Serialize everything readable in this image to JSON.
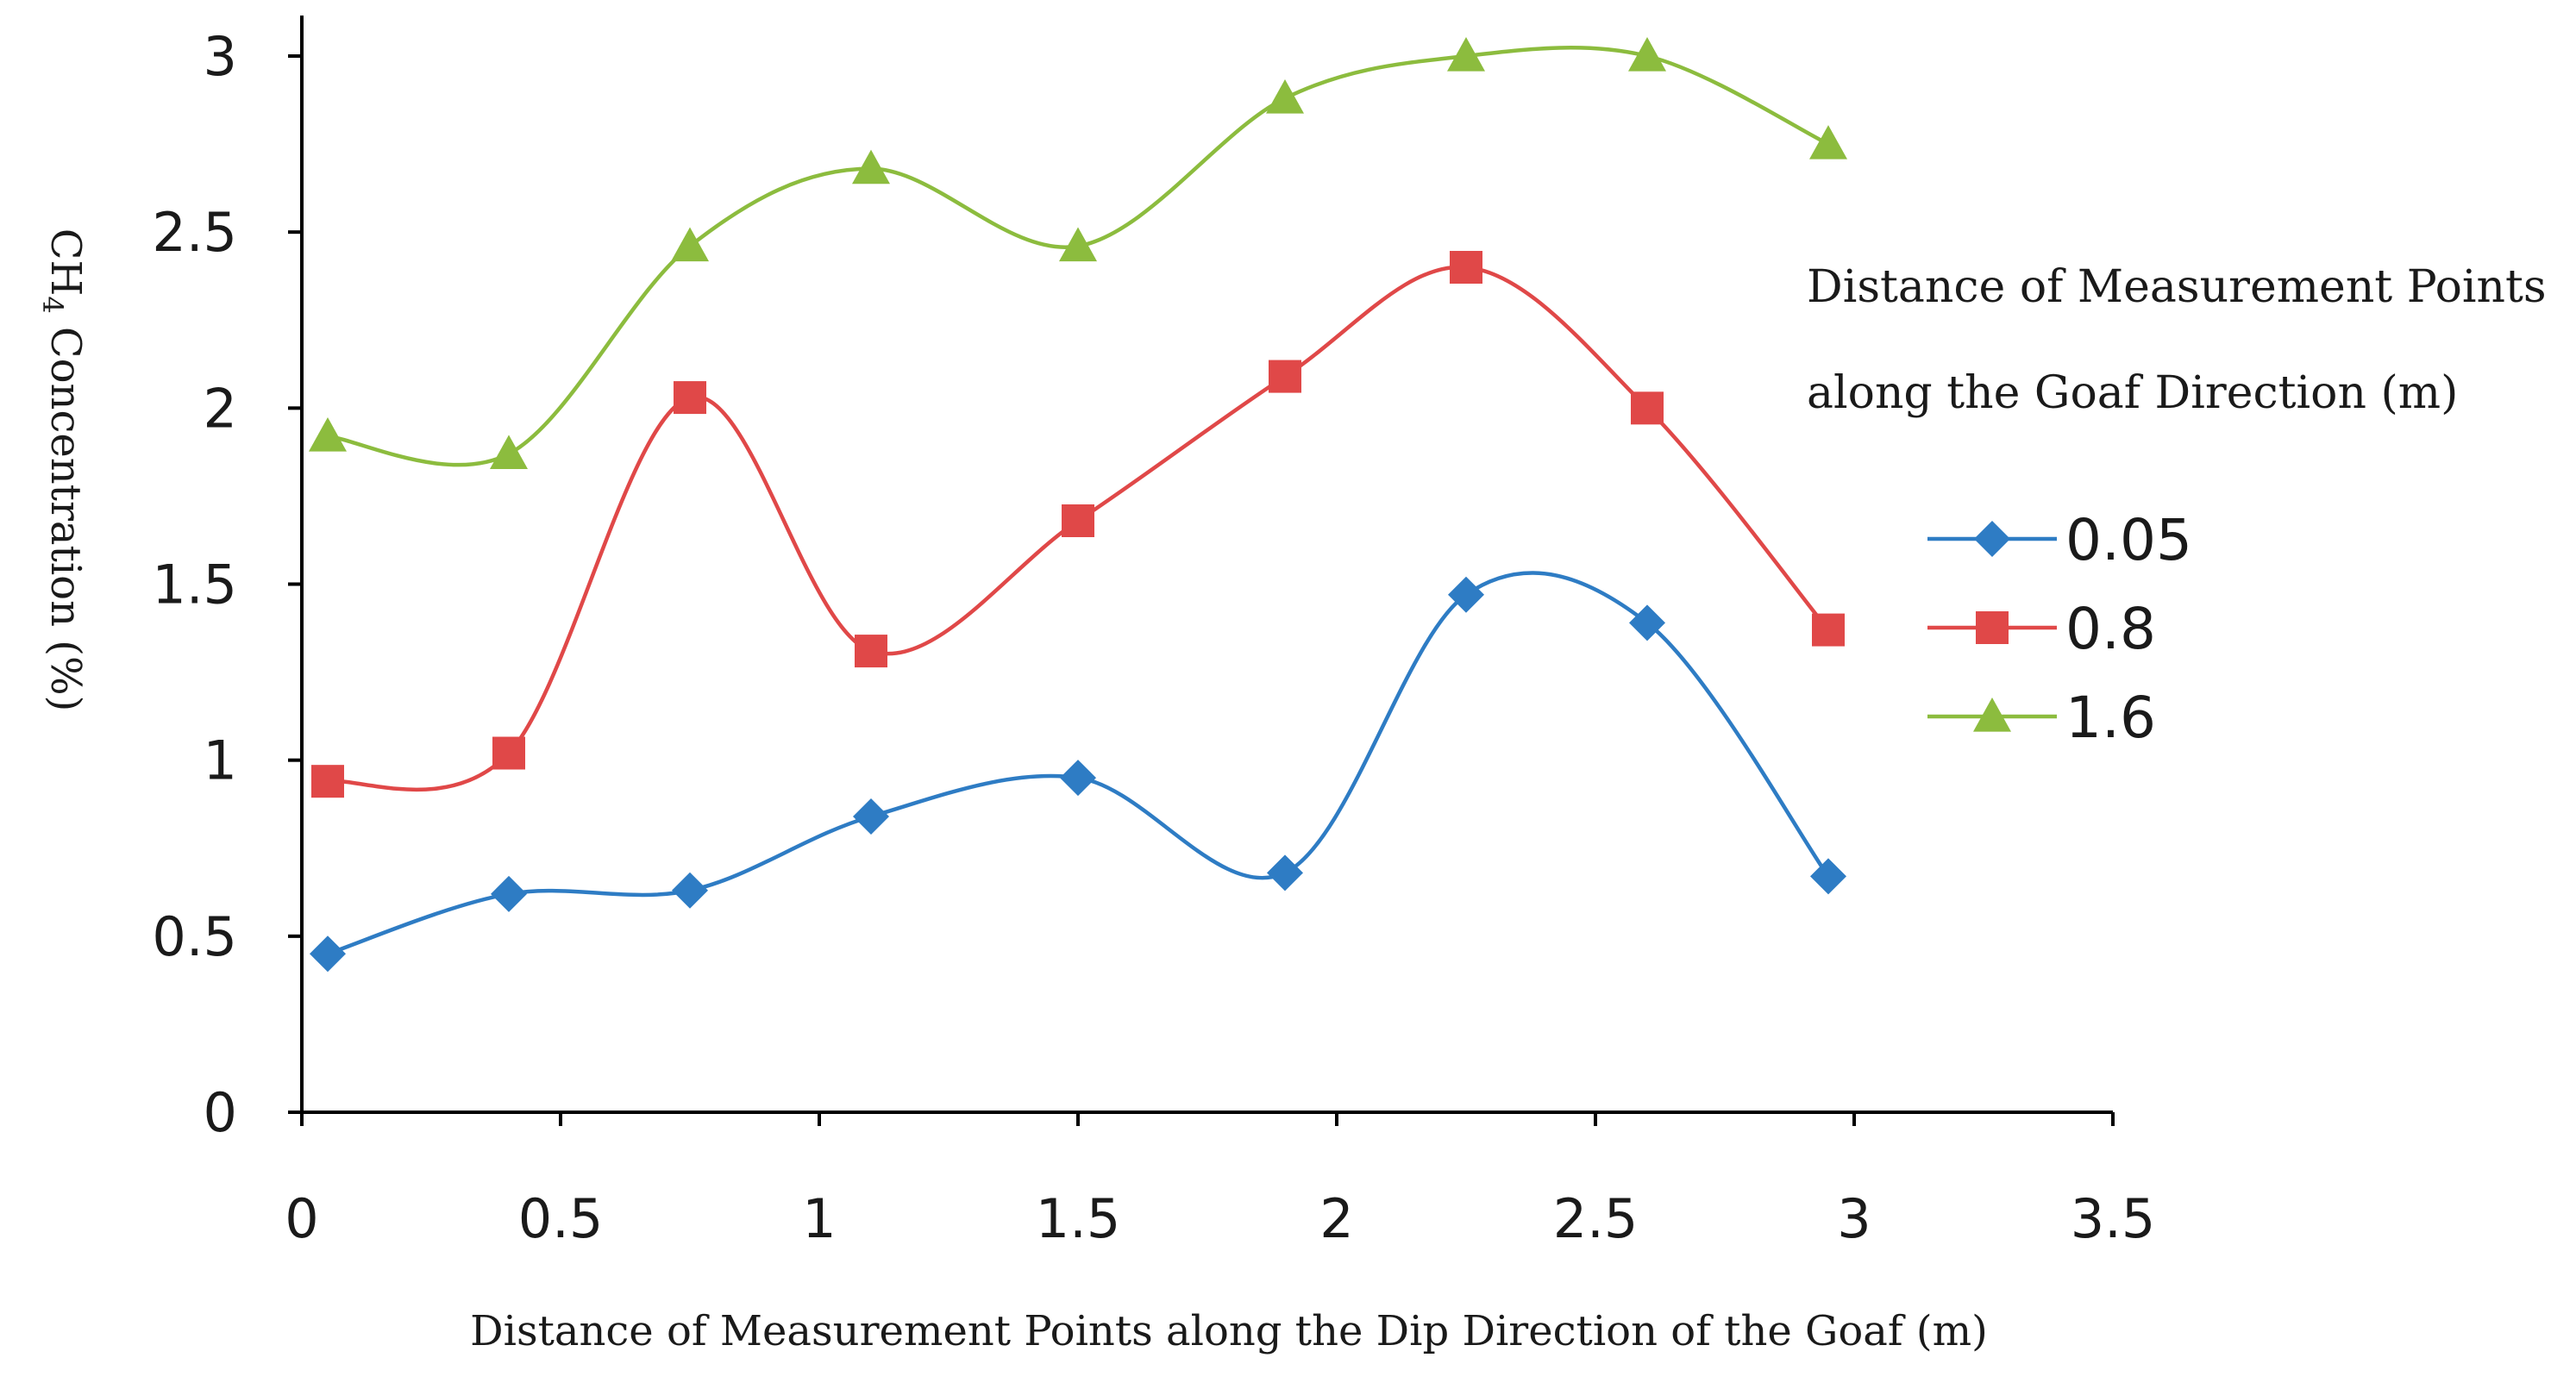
{
  "chart_data": {
    "type": "line",
    "smooth": true,
    "title": "",
    "xlabel": "Distance of Measurement Points along the Dip Direction of the Goaf (m)",
    "ylabel": {
      "prefix": "CH",
      "subscript": "4",
      "suffix": " Concentration (%)"
    },
    "xlim": [
      0,
      3.5
    ],
    "ylim": [
      0,
      3
    ],
    "xticks": [
      0,
      0.5,
      1,
      1.5,
      2,
      2.5,
      3,
      3.5
    ],
    "xtick_labels": [
      "0",
      "0.5",
      "1",
      "1.5",
      "2",
      "2.5",
      "3",
      "3.5"
    ],
    "yticks": [
      0,
      0.5,
      1,
      1.5,
      2,
      2.5,
      3
    ],
    "ytick_labels": [
      "0",
      "0.5",
      "1",
      "1.5",
      "2",
      "2.5",
      "3"
    ],
    "grid": false,
    "legend": {
      "title_line1": "Distance of Measurement Points",
      "title_line2": "along the Goaf Direction (m)",
      "placement": "right"
    },
    "x": [
      0.05,
      0.4,
      0.75,
      1.1,
      1.5,
      1.9,
      2.25,
      2.6,
      2.95
    ],
    "series": [
      {
        "name": "0.05",
        "marker": "diamond",
        "color": "#2e7cc4",
        "values": [
          0.45,
          0.62,
          0.63,
          0.84,
          0.95,
          0.68,
          1.47,
          1.39,
          0.67
        ]
      },
      {
        "name": "0.8",
        "marker": "square",
        "color": "#e04848",
        "values": [
          0.94,
          1.02,
          2.03,
          1.31,
          1.68,
          2.09,
          2.4,
          2.0,
          1.37
        ]
      },
      {
        "name": "1.6",
        "marker": "triangle",
        "color": "#8cbc3e",
        "values": [
          1.92,
          1.87,
          2.46,
          2.68,
          2.46,
          2.88,
          3.0,
          3.0,
          2.75
        ]
      }
    ]
  }
}
